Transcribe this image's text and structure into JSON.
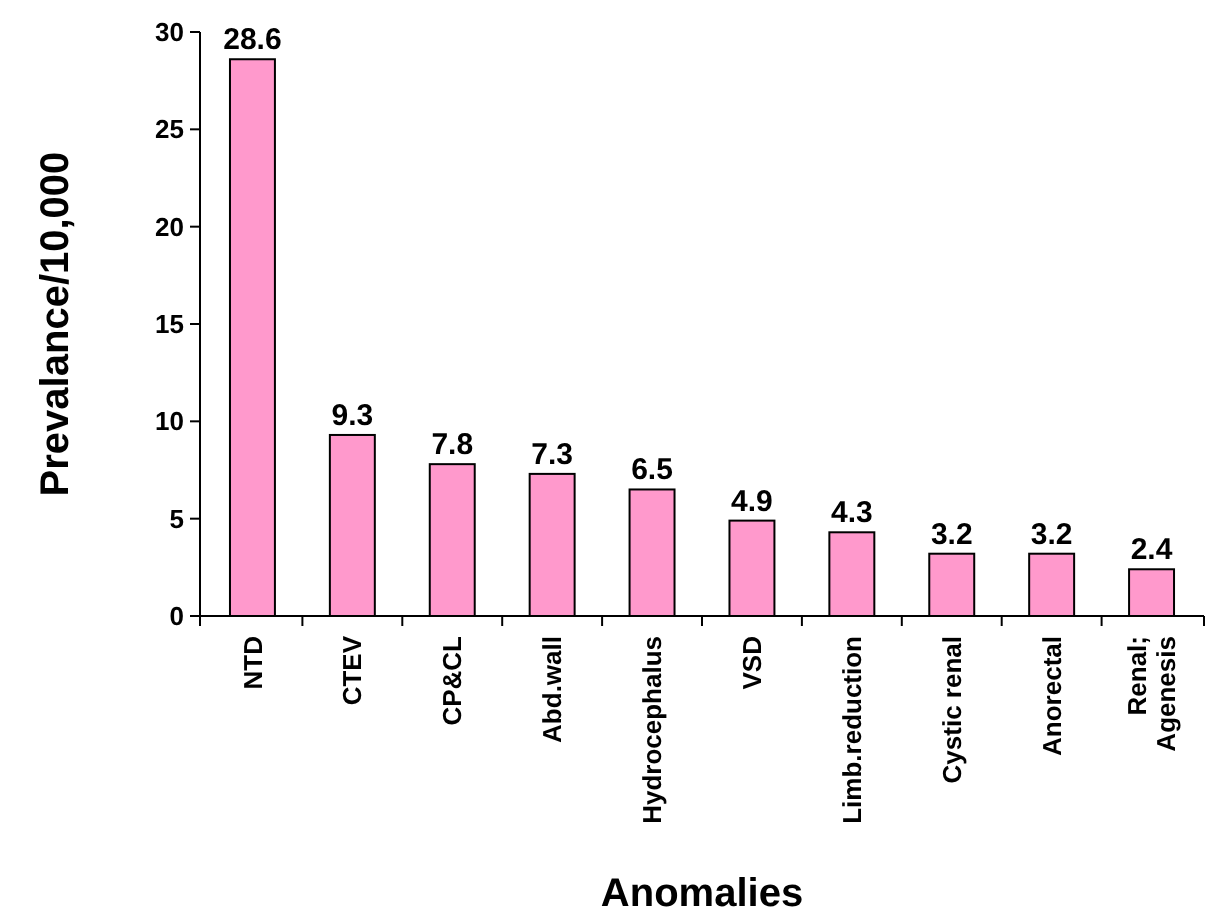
{
  "chart_data": {
    "type": "bar",
    "xlabel": "Anomalies",
    "ylabel": "Prevalance/10,000",
    "categories": [
      "NTD",
      "CTEV",
      "CP&CL",
      "Abd.wall",
      "Hydrocephalus",
      "VSD",
      "Limb.reduction",
      "Cystic renal",
      "Anorectal",
      "Renal; Agenesis"
    ],
    "values": [
      28.6,
      9.3,
      7.8,
      7.3,
      6.5,
      4.9,
      4.3,
      3.2,
      3.2,
      2.4
    ],
    "color": "#ff99cc",
    "ylim": [
      0,
      30
    ],
    "yticks": [
      0,
      5,
      10,
      15,
      20,
      25,
      30
    ],
    "data_labels": true
  }
}
